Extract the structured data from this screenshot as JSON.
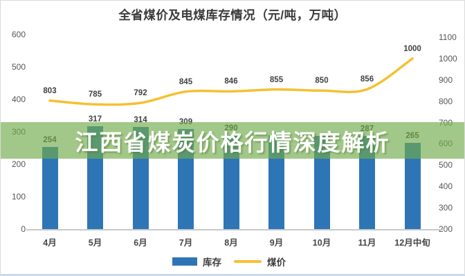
{
  "title": "全省煤价及电煤库存情况（元/吨，万吨）",
  "banner": {
    "text": "江西省煤炭价格行情深度解析"
  },
  "legend": [
    {
      "label": "库存",
      "swatch": "bar",
      "color": "#2E75B6"
    },
    {
      "label": "煤价",
      "swatch": "line",
      "color": "#F5C032"
    }
  ],
  "chart_data": {
    "type": "combo-bar-line",
    "categories": [
      "4月",
      "5月",
      "6月",
      "7月",
      "8月",
      "9月",
      "10月",
      "11月",
      "12月中旬"
    ],
    "series": [
      {
        "name": "库存",
        "type": "bar",
        "axis": "left",
        "color": "#2E75B6",
        "values": [
          254,
          317,
          314,
          309,
          290,
          289,
          288,
          287,
          265
        ],
        "hidden_label_indexes": [
          5,
          6
        ],
        "values_note": "labels for 9月 and 10月 are covered by the banner text; their values are estimated from bar heights"
      },
      {
        "name": "煤价",
        "type": "line",
        "axis": "right",
        "color": "#F5C032",
        "values": [
          803,
          785,
          792,
          845,
          846,
          855,
          850,
          856,
          1000
        ]
      }
    ],
    "left_axis": {
      "min": 0,
      "max": 600,
      "step": 100
    },
    "right_axis": {
      "min": 200,
      "max": 1100,
      "step": 100
    },
    "grid": false,
    "legend_position": "bottom"
  }
}
